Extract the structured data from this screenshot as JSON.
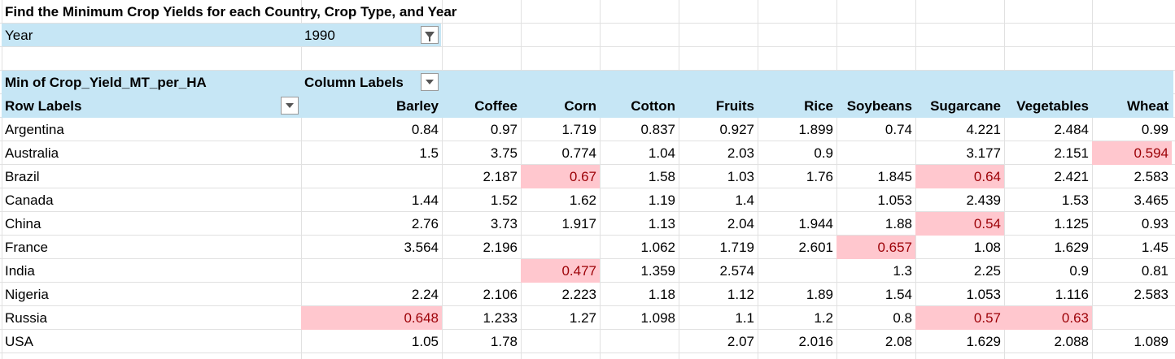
{
  "title": "Find the Minimum Crop Yields for each Country, Crop Type, and Year",
  "filter": {
    "label": "Year",
    "value": "1990"
  },
  "pivot": {
    "value_field": "Min of Crop_Yield_MT_per_HA",
    "column_labels": "Column Labels",
    "row_labels": "Row Labels",
    "columns": [
      "Barley",
      "Coffee",
      "Corn",
      "Cotton",
      "Fruits",
      "Rice",
      "Soybeans",
      "Sugarcane",
      "Vegetables",
      "Wheat"
    ],
    "rows": [
      {
        "country": "Argentina",
        "values": [
          "0.84",
          "0.97",
          "1.719",
          "0.837",
          "0.927",
          "1.899",
          "0.74",
          "4.221",
          "2.484",
          "0.99"
        ],
        "highlight": []
      },
      {
        "country": "Australia",
        "values": [
          "1.5",
          "3.75",
          "0.774",
          "1.04",
          "2.03",
          "0.9",
          "",
          "3.177",
          "2.151",
          "0.594"
        ],
        "highlight": [
          9
        ]
      },
      {
        "country": "Brazil",
        "values": [
          "",
          "2.187",
          "0.67",
          "1.58",
          "1.03",
          "1.76",
          "1.845",
          "0.64",
          "2.421",
          "2.583"
        ],
        "highlight": [
          2,
          7
        ]
      },
      {
        "country": "Canada",
        "values": [
          "1.44",
          "1.52",
          "1.62",
          "1.19",
          "1.4",
          "",
          "1.053",
          "2.439",
          "1.53",
          "3.465"
        ],
        "highlight": []
      },
      {
        "country": "China",
        "values": [
          "2.76",
          "3.73",
          "1.917",
          "1.13",
          "2.04",
          "1.944",
          "1.88",
          "0.54",
          "1.125",
          "0.93"
        ],
        "highlight": [
          7
        ]
      },
      {
        "country": "France",
        "values": [
          "3.564",
          "2.196",
          "",
          "1.062",
          "1.719",
          "2.601",
          "0.657",
          "1.08",
          "1.629",
          "1.45"
        ],
        "highlight": [
          6
        ]
      },
      {
        "country": "India",
        "values": [
          "",
          "",
          "0.477",
          "1.359",
          "2.574",
          "",
          "1.3",
          "2.25",
          "0.9",
          "0.81"
        ],
        "highlight": [
          2
        ]
      },
      {
        "country": "Nigeria",
        "values": [
          "2.24",
          "2.106",
          "2.223",
          "1.18",
          "1.12",
          "1.89",
          "1.54",
          "1.053",
          "1.116",
          "2.583"
        ],
        "highlight": []
      },
      {
        "country": "Russia",
        "values": [
          "0.648",
          "1.233",
          "1.27",
          "1.098",
          "1.1",
          "1.2",
          "0.8",
          "0.57",
          "0.63",
          ""
        ],
        "highlight": [
          0,
          7,
          8
        ]
      },
      {
        "country": "USA",
        "values": [
          "1.05",
          "1.78",
          "",
          "",
          "2.07",
          "2.016",
          "2.08",
          "1.629",
          "2.088",
          "1.089"
        ],
        "highlight": []
      }
    ]
  },
  "colors": {
    "header_fill": "#c6e6f5",
    "highlight_fill": "#ffc7ce",
    "highlight_text": "#9c0006"
  },
  "icons": {
    "filter_button": "filter-funnel-icon",
    "dropdown_button": "chevron-down-icon"
  }
}
